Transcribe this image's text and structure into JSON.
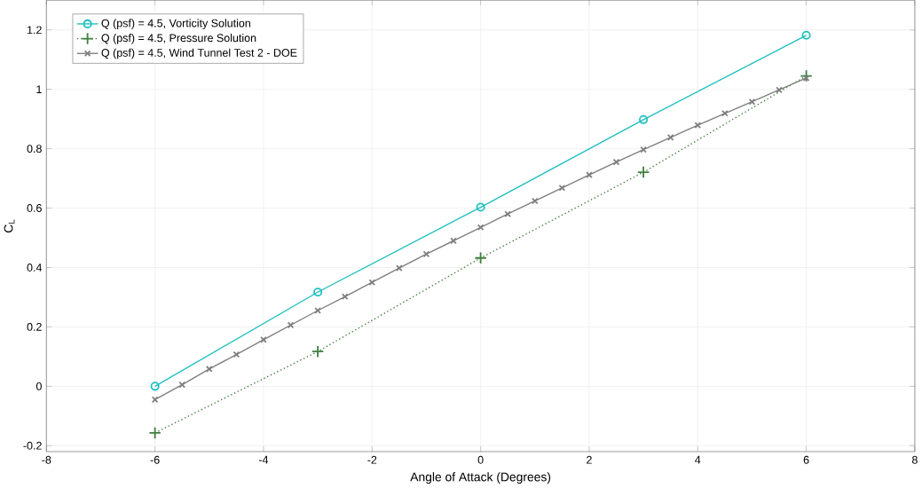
{
  "chart_data": {
    "type": "line",
    "xlabel": "Angle of Attack (Degrees)",
    "ylabel": "C$_{L}$",
    "xlim": [
      -8,
      8
    ],
    "xticks": [
      -8,
      -6,
      -4,
      -2,
      0,
      2,
      4,
      6,
      8
    ],
    "ylim": [
      -0.22,
      1.3
    ],
    "yticks": [
      -0.2,
      0,
      0.2,
      0.4,
      0.6,
      0.8,
      1,
      1.2
    ],
    "grid": true,
    "legend": "top left",
    "series": [
      {
        "name": "Q (psf) = 4.5, Vorticity Solution",
        "color": "#1fbfbf",
        "marker": "circle",
        "line_style": "solid",
        "x": [
          -6,
          -3,
          0,
          3,
          6
        ],
        "values": [
          0,
          0.317,
          0.603,
          0.898,
          1.182
        ]
      },
      {
        "name": "Q (psf) = 4.5, Pressure Solution",
        "color": "#3f7f3f",
        "marker": "cross",
        "line_style": "dotted",
        "x": [
          -6,
          -3,
          0,
          3,
          6
        ],
        "values": [
          -0.157,
          0.117,
          0.432,
          0.721,
          1.045
        ]
      },
      {
        "name": "Q (psf) = 4.5, Wind Tunnel Test 2 - DOE",
        "color": "#7f7f7f",
        "marker": "cross",
        "line_style": "solid",
        "x": [
          -6,
          -5.5,
          -5,
          -4.5,
          -4,
          -3.5,
          -3,
          -2.5,
          -2,
          -1.5,
          -1,
          -0.5,
          0,
          0.5,
          1,
          1.5,
          2,
          2.5,
          3,
          3.5,
          4,
          4.5,
          5,
          5.5,
          6
        ],
        "values": [
          -0.045,
          0.005,
          0.058,
          0.107,
          0.157,
          0.206,
          0.255,
          0.302,
          0.35,
          0.398,
          0.445,
          0.49,
          0.535,
          0.58,
          0.624,
          0.668,
          0.712,
          0.755,
          0.797,
          0.838,
          0.879,
          0.919,
          0.958,
          0.998,
          1.038
        ]
      }
    ]
  }
}
